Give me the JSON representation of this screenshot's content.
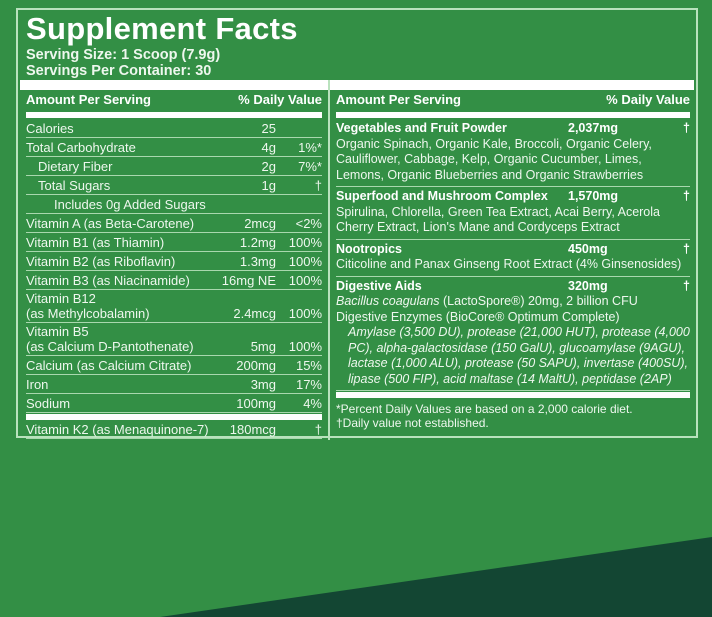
{
  "title": "Supplement Facts",
  "serving_size": "Serving Size: 1 Scoop (7.9g)",
  "servings_per_container": "Servings Per Container: 30",
  "colors": {
    "background": "#338f45",
    "corner": "#134633",
    "text": "#ffffff"
  },
  "left": {
    "header_amount": "Amount Per Serving",
    "header_dv": "% Daily Value",
    "rows": [
      {
        "name": "Calories",
        "amount": "25",
        "dv": ""
      },
      {
        "name": "Total Carbohydrate",
        "amount": "4g",
        "dv": "1%*"
      },
      {
        "name": "Dietary Fiber",
        "amount": "2g",
        "dv": "7%*"
      },
      {
        "name": "Total Sugars",
        "amount": "1g",
        "dv": "†"
      },
      {
        "name": "Includes 0g Added Sugars",
        "amount": "",
        "dv": ""
      },
      {
        "name": "Vitamin A (as Beta-Carotene)",
        "amount": "2mcg",
        "dv": "<2%"
      },
      {
        "name": "Vitamin B1 (as Thiamin)",
        "amount": "1.2mg",
        "dv": "100%"
      },
      {
        "name": "Vitamin B2 (as Riboflavin)",
        "amount": "1.3mg",
        "dv": "100%"
      },
      {
        "name": "Vitamin B3 (as Niacinamide)",
        "amount": "16mg NE",
        "dv": "100%"
      },
      {
        "name": "Vitamin B12",
        "name2": "(as Methylcobalamin)",
        "amount": "2.4mcg",
        "dv": "100%"
      },
      {
        "name": "Vitamin B5",
        "name2": "(as Calcium D-Pantothenate)",
        "amount": "5mg",
        "dv": "100%"
      },
      {
        "name": "Calcium (as Calcium Citrate)",
        "amount": "200mg",
        "dv": "15%"
      },
      {
        "name": "Iron",
        "amount": "3mg",
        "dv": "17%"
      },
      {
        "name": "Sodium",
        "amount": "100mg",
        "dv": "4%"
      },
      {
        "name": "Vitamin K2 (as Menaquinone-7)",
        "amount": "180mcg",
        "dv": "†"
      }
    ]
  },
  "right": {
    "header_amount": "Amount Per Serving",
    "header_dv": "% Daily Value",
    "blocks": [
      {
        "name": "Vegetables and Fruit Powder",
        "amount": "2,037mg",
        "dv": "†",
        "text": "Organic Spinach, Organic Kale, Broccoli, Organic Celery, Cauliflower, Cabbage, Kelp, Organic Cucumber, Limes, Lemons, Organic Blueberries and Organic Strawberries"
      },
      {
        "name": "Superfood and Mushroom Complex",
        "amount": "1,570mg",
        "dv": "†",
        "text": "Spirulina, Chlorella, Green Tea Extract, Acai Berry, Acerola Cherry Extract, Lion's Mane and Cordyceps Extract"
      },
      {
        "name": "Nootropics",
        "amount": "450mg",
        "dv": "†",
        "text": "Citicoline and Panax Ginseng Root Extract (4% Ginsenosides)"
      },
      {
        "name": "Digestive Aids",
        "amount": "320mg",
        "dv": "†",
        "bacillus_italic": "Bacillus coagulans",
        "bacillus_rest": " (LactoSpore®) 20mg, 2 billion CFU",
        "enzymes": "Digestive Enzymes (BioCore® Optimum Complete)",
        "enzyme_list": "Amylase (3,500 DU), protease (21,000 HUT), protease (4,000 PC), alpha-galactosidase (150 GalU), glucoamylase (9AGU), lactase (1,000 ALU), protease (50 SAPU), invertase (400SU), lipase (500 FIP), acid maltase (14 MaltU), peptidase (2AP)"
      }
    ],
    "footnote1": "*Percent Daily Values are based on a 2,000 calorie diet.",
    "footnote2": "†Daily value not established."
  }
}
